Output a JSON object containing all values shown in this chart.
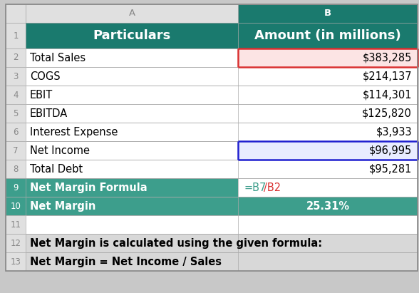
{
  "col_header_bg": "#1a7a6e",
  "col_header_text": "#ffffff",
  "outer_bg": "#c8c8c8",
  "grid_color": "#aaaaaa",
  "teal_bg": "#3d9e8c",
  "font_size": 10.5,
  "header_font_size": 13,
  "row_num_color": "#888888",
  "rows": [
    {
      "row": 1,
      "label": "Particulars",
      "value": "Amount (in millions)",
      "label_bg": "#1a7a6e",
      "value_bg": "#1a7a6e",
      "label_color": "#ffffff",
      "value_color": "#ffffff",
      "label_bold": true,
      "value_bold": true,
      "label_align": "center",
      "value_align": "center",
      "is_header": true,
      "span": false
    },
    {
      "row": 2,
      "label": "Total Sales",
      "value": "$383,285",
      "label_bg": "#ffffff",
      "value_bg": "#fce4e4",
      "label_color": "#000000",
      "value_color": "#000000",
      "label_bold": false,
      "value_bold": false,
      "label_align": "left",
      "value_align": "right",
      "is_header": false,
      "span": false,
      "b_border_color": "#d93030",
      "b_border_lw": 1.8
    },
    {
      "row": 3,
      "label": "COGS",
      "value": "$214,137",
      "label_bg": "#ffffff",
      "value_bg": "#ffffff",
      "label_color": "#000000",
      "value_color": "#000000",
      "label_bold": false,
      "value_bold": false,
      "label_align": "left",
      "value_align": "right",
      "is_header": false,
      "span": false
    },
    {
      "row": 4,
      "label": "EBIT",
      "value": "$114,301",
      "label_bg": "#ffffff",
      "value_bg": "#ffffff",
      "label_color": "#000000",
      "value_color": "#000000",
      "label_bold": false,
      "value_bold": false,
      "label_align": "left",
      "value_align": "right",
      "is_header": false,
      "span": false
    },
    {
      "row": 5,
      "label": "EBITDA",
      "value": "$125,820",
      "label_bg": "#ffffff",
      "value_bg": "#ffffff",
      "label_color": "#000000",
      "value_color": "#000000",
      "label_bold": false,
      "value_bold": false,
      "label_align": "left",
      "value_align": "right",
      "is_header": false,
      "span": false
    },
    {
      "row": 6,
      "label": "Interest Expense",
      "value": "$3,933",
      "label_bg": "#ffffff",
      "value_bg": "#ffffff",
      "label_color": "#000000",
      "value_color": "#000000",
      "label_bold": false,
      "value_bold": false,
      "label_align": "left",
      "value_align": "right",
      "is_header": false,
      "span": false
    },
    {
      "row": 7,
      "label": "Net Income",
      "value": "$96,995",
      "label_bg": "#ffffff",
      "value_bg": "#e8ecff",
      "label_color": "#000000",
      "value_color": "#000000",
      "label_bold": false,
      "value_bold": false,
      "label_align": "left",
      "value_align": "right",
      "is_header": false,
      "span": false,
      "b_border_color": "#2020d0",
      "b_border_lw": 1.8
    },
    {
      "row": 8,
      "label": "Total Debt",
      "value": "$95,281",
      "label_bg": "#ffffff",
      "value_bg": "#ffffff",
      "label_color": "#000000",
      "value_color": "#000000",
      "label_bold": false,
      "value_bold": false,
      "label_align": "left",
      "value_align": "right",
      "is_header": false,
      "span": false
    },
    {
      "row": 9,
      "label": "Net Margin Formula",
      "value": "=B7/B2",
      "label_bg": "#3d9e8c",
      "value_bg": "#ffffff",
      "label_color": "#ffffff",
      "value_color": null,
      "formula_parts": [
        "=B7",
        "/B2"
      ],
      "formula_colors": [
        "#3d9e8c",
        "#d93030"
      ],
      "label_bold": true,
      "value_bold": false,
      "label_align": "left",
      "value_align": "left",
      "is_header": false,
      "span": false
    },
    {
      "row": 10,
      "label": "Net Margin",
      "value": "25.31%",
      "label_bg": "#3d9e8c",
      "value_bg": "#3d9e8c",
      "label_color": "#ffffff",
      "value_color": "#ffffff",
      "label_bold": true,
      "value_bold": true,
      "label_align": "left",
      "value_align": "center",
      "is_header": false,
      "span": false
    },
    {
      "row": 11,
      "label": "",
      "value": "",
      "label_bg": "#ffffff",
      "value_bg": "#ffffff",
      "label_color": "#000000",
      "value_color": "#000000",
      "label_bold": false,
      "value_bold": false,
      "label_align": "left",
      "value_align": "left",
      "is_header": false,
      "span": true
    },
    {
      "row": 12,
      "label": "Net Margin is calculated using the given formula:",
      "value": "",
      "label_bg": "#d8d8d8",
      "value_bg": "#d8d8d8",
      "label_color": "#000000",
      "value_color": "#000000",
      "label_bold": true,
      "value_bold": false,
      "label_align": "left",
      "value_align": "left",
      "is_header": false,
      "span": true
    },
    {
      "row": 13,
      "label": "Net Margin = Net Income / Sales",
      "value": "",
      "label_bg": "#d8d8d8",
      "value_bg": "#d8d8d8",
      "label_color": "#000000",
      "value_color": "#000000",
      "label_bold": true,
      "value_bold": false,
      "label_align": "left",
      "value_align": "left",
      "is_header": false,
      "span": true
    }
  ]
}
